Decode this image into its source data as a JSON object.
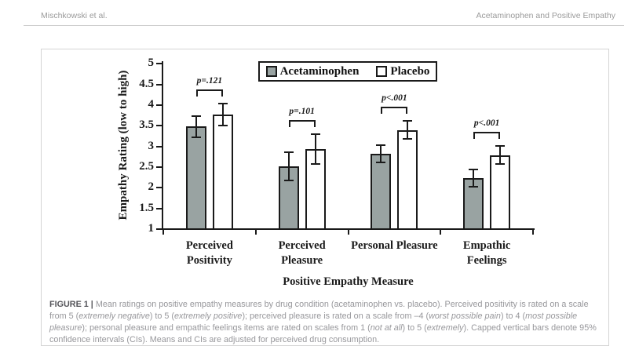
{
  "header": {
    "left": "Mischkowski et al.",
    "right": "Acetaminophen and Positive Empathy"
  },
  "chart_data": {
    "type": "bar",
    "categories": [
      "Perceived Positivity",
      "Perceived Pleasure",
      "Personal Pleasure",
      "Empathic Feelings"
    ],
    "category_lines": [
      [
        "Perceived",
        "Positivity"
      ],
      [
        "Perceived",
        "Pleasure"
      ],
      [
        "Personal Pleasure"
      ],
      [
        "Empathic",
        "Feelings"
      ]
    ],
    "series": [
      {
        "name": "Acetaminophen",
        "fill": "#99A3A2",
        "values": [
          3.46,
          2.5,
          2.81,
          2.22
        ],
        "ci": [
          0.25,
          0.34,
          0.21,
          0.21
        ]
      },
      {
        "name": "Placebo",
        "fill": "#FFFFFF",
        "values": [
          3.75,
          2.91,
          3.38,
          2.77
        ],
        "ci": [
          0.26,
          0.36,
          0.22,
          0.22
        ]
      }
    ],
    "p_labels": [
      "p=.121",
      "p=.101",
      "p<.001",
      "p<.001"
    ],
    "xlabel": "Positive Empathy Measure",
    "ylabel": "Empathy Rating (low to high)",
    "ylim": [
      1,
      5
    ],
    "ytick_step": 0.5,
    "legend_position": "top",
    "error_bars": "95% confidence intervals",
    "grid": false,
    "bar_border_color": "#1a1a1a"
  },
  "figure": {
    "caption": {
      "segments": [
        {
          "t": "FIGURE 1 | ",
          "b": 1
        },
        {
          "t": "Mean ratings on positive empathy measures by drug condition (acetaminophen vs. placebo). Perceived positivity is rated on a scale from 5 ("
        },
        {
          "t": "extremely negative",
          "i": 1
        },
        {
          "t": ") to 5 ("
        },
        {
          "t": "extremely positive",
          "i": 1
        },
        {
          "t": "); perceived pleasure is rated on a scale from –4 ("
        },
        {
          "t": "worst possible pain",
          "i": 1
        },
        {
          "t": ") to 4 ("
        },
        {
          "t": "most possible pleasure",
          "i": 1
        },
        {
          "t": "); personal pleasure and empathic feelings items are rated on scales from 1 ("
        },
        {
          "t": "not at all",
          "i": 1
        },
        {
          "t": ") to 5 ("
        },
        {
          "t": "extremely",
          "i": 1
        },
        {
          "t": "). Capped vertical bars denote 95% confidence intervals (CIs). Means and CIs are adjusted for perceived drug consumption."
        }
      ]
    }
  }
}
